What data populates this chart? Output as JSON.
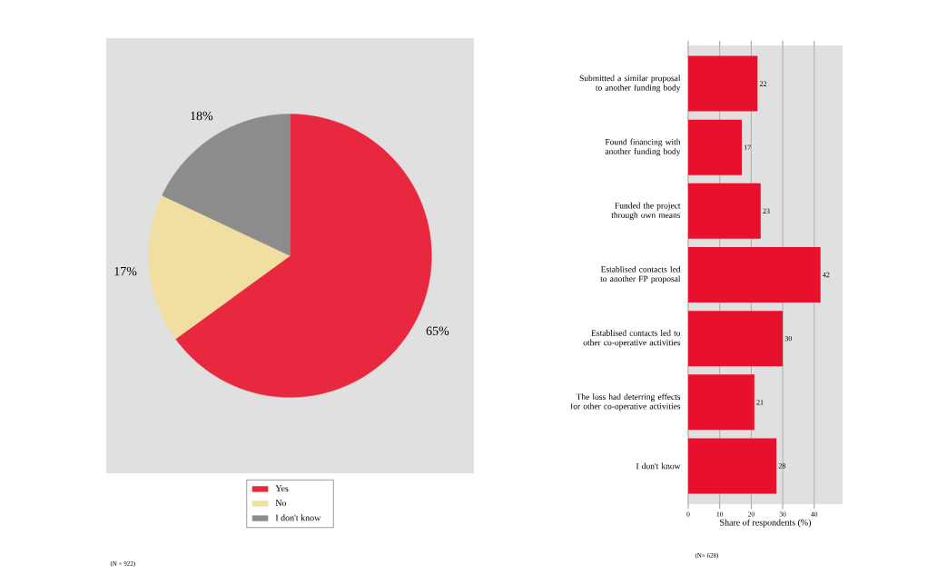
{
  "chart_data": [
    {
      "type": "pie",
      "categories": [
        "Yes",
        "No",
        "I don't know"
      ],
      "values": [
        65,
        17,
        18
      ],
      "colors": [
        "#e8283f",
        "#f0dfa0",
        "#8c8c8c"
      ],
      "value_labels": [
        "65%",
        "17%",
        "18%"
      ],
      "legend": "bottom",
      "annotations": [
        "(N = 922)"
      ]
    },
    {
      "type": "bar",
      "orientation": "horizontal",
      "categories": [
        "Submitted a similar proposal to another funding body",
        "Found financing with another funding body",
        "Funded the project through own means",
        "Establised contacts led to another FP proposal",
        "Establised contacts led to other co-operative activities",
        "The loss had deterring effects for other co-operative activities",
        "I don't know"
      ],
      "values": [
        22,
        17,
        23,
        42,
        30,
        21,
        28
      ],
      "color": "#e8112d",
      "xlim": [
        0,
        49
      ],
      "xticks": [
        0,
        10,
        20,
        30,
        40
      ],
      "grid": "x",
      "data_labels": true,
      "xlabel": "Share of respondents (%)",
      "annotations": [
        "(N= 628)"
      ]
    }
  ]
}
